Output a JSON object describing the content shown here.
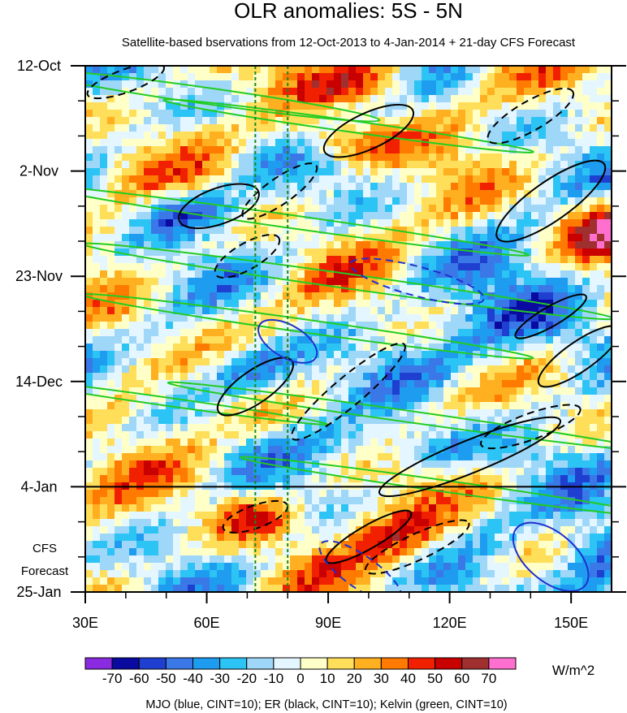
{
  "chart_data": {
    "type": "heatmap",
    "title": "OLR anomalies: 5S - 5N",
    "subtitle": "Satellite-based bservations from 12-Oct-2013 to 4-Jan-2014 + 21-day CFS Forecast",
    "xlabel": "",
    "ylabel": "",
    "x_range": [
      30,
      160
    ],
    "x_unit": "degrees E",
    "x_ticks": [
      30,
      60,
      90,
      120,
      150
    ],
    "x_tick_labels": [
      "30E",
      "60E",
      "90E",
      "120E",
      "150E"
    ],
    "y_tick_labels": [
      "12-Oct",
      "2-Nov",
      "23-Nov",
      "14-Dec",
      "4-Jan",
      "25-Jan"
    ],
    "y_tick_day_offsets": [
      0,
      21,
      42,
      63,
      84,
      105
    ],
    "y_range_days": [
      0,
      105
    ],
    "forecast_start_label": "4-Jan",
    "forecast_label_lines": [
      "CFS",
      "Forecast"
    ],
    "reference_longitudes": [
      72,
      80
    ],
    "colorbar": {
      "levels": [
        -70,
        -60,
        -50,
        -40,
        -30,
        -20,
        -10,
        0,
        10,
        20,
        30,
        40,
        50,
        60,
        70
      ],
      "colors": [
        "#8a2be2",
        "#0a0aa0",
        "#1f3fd0",
        "#3a78e8",
        "#1e9cf0",
        "#2cc4f4",
        "#9fd7f8",
        "#e4f6ff",
        "#ffffc8",
        "#ffde5a",
        "#ffb020",
        "#ff7a00",
        "#f02000",
        "#c80000",
        "#a03030",
        "#ff6fcf"
      ],
      "units": "W/m^2"
    },
    "footer": "MJO (blue, CINT=10); ER (black, CINT=10); Kelvin (green, CINT=10)"
  }
}
